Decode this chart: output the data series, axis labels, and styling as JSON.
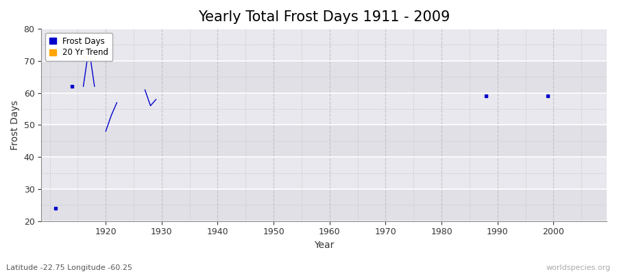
{
  "title": "Yearly Total Frost Days 1911 - 2009",
  "xlabel": "Year",
  "ylabel": "Frost Days",
  "xlim": [
    1908.5,
    2009.5
  ],
  "ylim": [
    20,
    80
  ],
  "yticks": [
    20,
    30,
    40,
    50,
    60,
    70,
    80
  ],
  "xticks": [
    1920,
    1930,
    1940,
    1950,
    1960,
    1970,
    1980,
    1990,
    2000
  ],
  "bg_color": "#ffffff",
  "plot_bg_color": "#e8e8e8",
  "band_light": "#eaeaea",
  "band_dark": "#dcdcdc",
  "grid_color_major": "#ffffff",
  "grid_color_minor": "#d0d0d0",
  "line_color": "#0000cc",
  "connected_segments": [
    [
      [
        1916,
        62
      ],
      [
        1917,
        74
      ],
      [
        1918,
        62
      ]
    ],
    [
      [
        1920,
        48
      ],
      [
        1921,
        53
      ],
      [
        1922,
        57
      ]
    ],
    [
      [
        1927,
        61
      ],
      [
        1928,
        56
      ],
      [
        1929,
        58
      ]
    ]
  ],
  "isolated_points": [
    [
      1911,
      24
    ],
    [
      1914,
      62
    ],
    [
      1988,
      59
    ],
    [
      1999,
      59
    ]
  ],
  "legend_frost_color": "#0000cc",
  "legend_trend_color": "#ffa500",
  "subtitle": "Latitude -22.75 Longitude -60.25",
  "watermark": "worldspecies.org",
  "title_fontsize": 15,
  "label_fontsize": 10,
  "tick_fontsize": 9
}
